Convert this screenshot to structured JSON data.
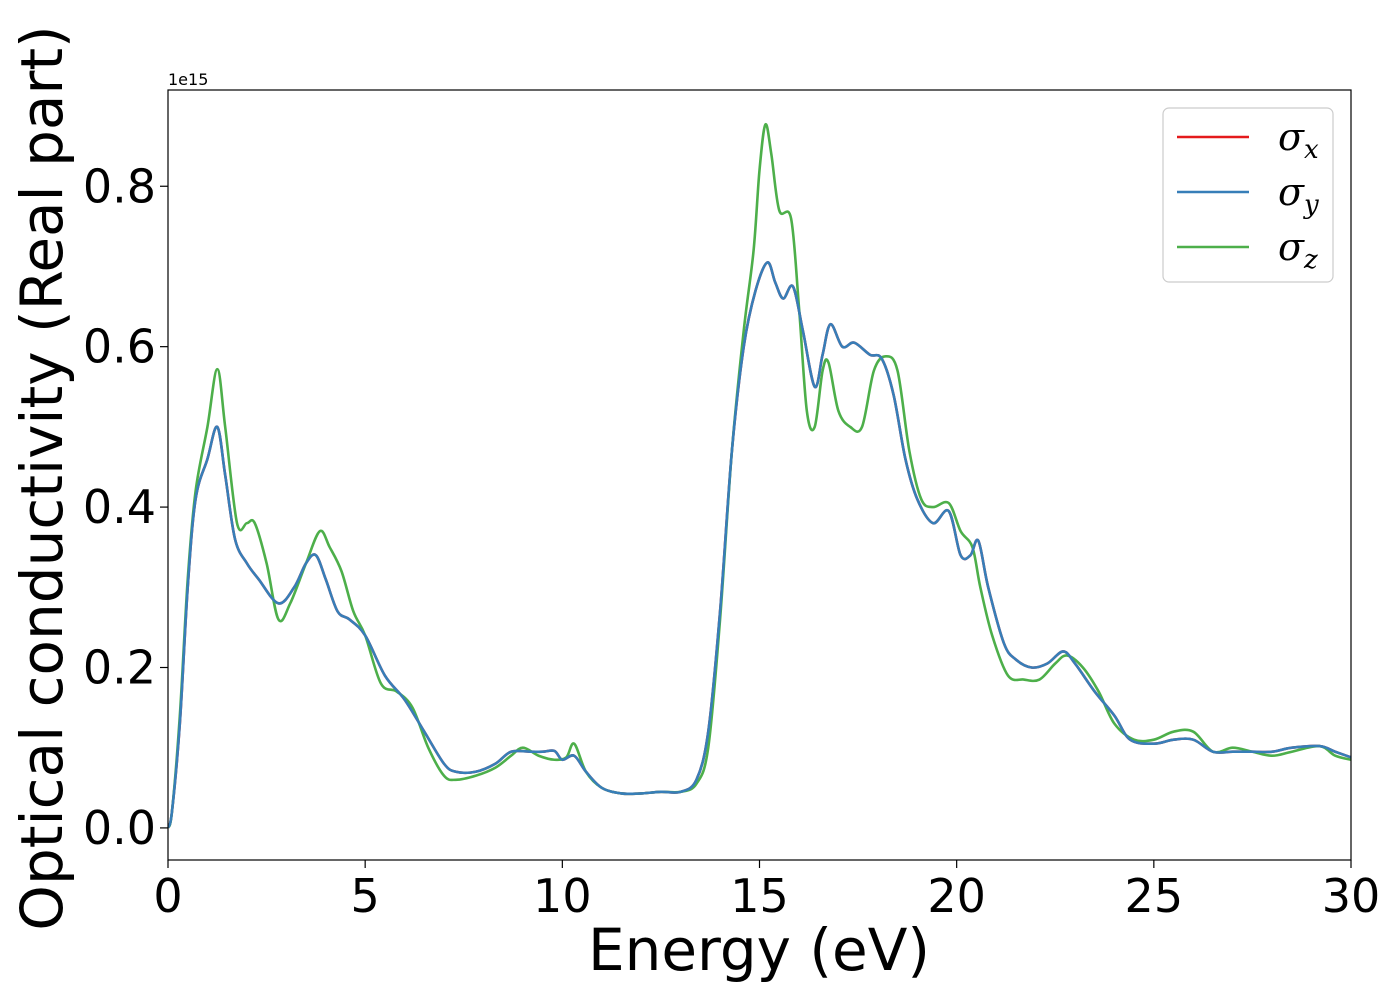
{
  "chart_data": {
    "type": "line",
    "title": "",
    "xlabel": "Energy (eV)",
    "ylabel": "Optical conductivity (Real part)",
    "y_offset_text": "1e15",
    "xlim": [
      0,
      30
    ],
    "ylim": [
      -0.04,
      0.92
    ],
    "xticks": [
      0,
      5,
      10,
      15,
      20,
      25,
      30
    ],
    "xtick_labels": [
      "0",
      "5",
      "10",
      "15",
      "20",
      "25",
      "30"
    ],
    "yticks": [
      0.0,
      0.2,
      0.4,
      0.6,
      0.8
    ],
    "ytick_labels": [
      "0.0",
      "0.2",
      "0.4",
      "0.6",
      "0.8"
    ],
    "grid": false,
    "legend_position": "top-right",
    "series": [
      {
        "name": "σx",
        "legend_base": "σ",
        "legend_sub": "x",
        "color": "#e41a1c",
        "points": [
          [
            0,
            0.0
          ],
          [
            0.1,
            0.02
          ],
          [
            0.3,
            0.13
          ],
          [
            0.5,
            0.3
          ],
          [
            0.7,
            0.41
          ],
          [
            1.0,
            0.46
          ],
          [
            1.25,
            0.5
          ],
          [
            1.45,
            0.44
          ],
          [
            1.7,
            0.36
          ],
          [
            2.0,
            0.33
          ],
          [
            2.3,
            0.31
          ],
          [
            2.8,
            0.28
          ],
          [
            3.2,
            0.3
          ],
          [
            3.5,
            0.33
          ],
          [
            3.75,
            0.34
          ],
          [
            4.0,
            0.31
          ],
          [
            4.3,
            0.27
          ],
          [
            4.6,
            0.26
          ],
          [
            5.0,
            0.24
          ],
          [
            5.5,
            0.19
          ],
          [
            6.0,
            0.16
          ],
          [
            6.5,
            0.12
          ],
          [
            7.0,
            0.08
          ],
          [
            7.3,
            0.07
          ],
          [
            7.8,
            0.07
          ],
          [
            8.3,
            0.08
          ],
          [
            8.7,
            0.095
          ],
          [
            9.2,
            0.095
          ],
          [
            9.5,
            0.095
          ],
          [
            9.8,
            0.096
          ],
          [
            10.0,
            0.085
          ],
          [
            10.3,
            0.09
          ],
          [
            10.6,
            0.07
          ],
          [
            11.0,
            0.05
          ],
          [
            11.5,
            0.043
          ],
          [
            12.0,
            0.043
          ],
          [
            12.5,
            0.045
          ],
          [
            13.0,
            0.045
          ],
          [
            13.4,
            0.06
          ],
          [
            13.7,
            0.12
          ],
          [
            14.0,
            0.27
          ],
          [
            14.3,
            0.47
          ],
          [
            14.6,
            0.6
          ],
          [
            14.9,
            0.67
          ],
          [
            15.2,
            0.705
          ],
          [
            15.4,
            0.68
          ],
          [
            15.6,
            0.66
          ],
          [
            15.85,
            0.675
          ],
          [
            16.1,
            0.62
          ],
          [
            16.4,
            0.55
          ],
          [
            16.6,
            0.59
          ],
          [
            16.8,
            0.628
          ],
          [
            17.1,
            0.6
          ],
          [
            17.4,
            0.605
          ],
          [
            17.8,
            0.59
          ],
          [
            18.1,
            0.585
          ],
          [
            18.4,
            0.54
          ],
          [
            18.7,
            0.46
          ],
          [
            19.0,
            0.41
          ],
          [
            19.4,
            0.38
          ],
          [
            19.8,
            0.395
          ],
          [
            20.1,
            0.34
          ],
          [
            20.35,
            0.34
          ],
          [
            20.55,
            0.358
          ],
          [
            20.8,
            0.3
          ],
          [
            21.2,
            0.23
          ],
          [
            21.5,
            0.21
          ],
          [
            21.9,
            0.2
          ],
          [
            22.3,
            0.205
          ],
          [
            22.7,
            0.22
          ],
          [
            23.0,
            0.205
          ],
          [
            23.5,
            0.17
          ],
          [
            24.0,
            0.14
          ],
          [
            24.4,
            0.11
          ],
          [
            25.0,
            0.105
          ],
          [
            25.5,
            0.11
          ],
          [
            26.0,
            0.11
          ],
          [
            26.5,
            0.095
          ],
          [
            27.0,
            0.095
          ],
          [
            27.5,
            0.095
          ],
          [
            28.0,
            0.095
          ],
          [
            28.5,
            0.1
          ],
          [
            29.2,
            0.102
          ],
          [
            29.6,
            0.095
          ],
          [
            30.0,
            0.088
          ]
        ]
      },
      {
        "name": "σy",
        "legend_base": "σ",
        "legend_sub": "y",
        "color": "#377eb8",
        "points": [
          [
            0,
            0.0
          ],
          [
            0.1,
            0.02
          ],
          [
            0.3,
            0.13
          ],
          [
            0.5,
            0.3
          ],
          [
            0.7,
            0.41
          ],
          [
            1.0,
            0.46
          ],
          [
            1.25,
            0.5
          ],
          [
            1.45,
            0.44
          ],
          [
            1.7,
            0.36
          ],
          [
            2.0,
            0.33
          ],
          [
            2.3,
            0.31
          ],
          [
            2.8,
            0.28
          ],
          [
            3.2,
            0.3
          ],
          [
            3.5,
            0.33
          ],
          [
            3.75,
            0.34
          ],
          [
            4.0,
            0.31
          ],
          [
            4.3,
            0.27
          ],
          [
            4.6,
            0.26
          ],
          [
            5.0,
            0.24
          ],
          [
            5.5,
            0.19
          ],
          [
            6.0,
            0.16
          ],
          [
            6.5,
            0.12
          ],
          [
            7.0,
            0.08
          ],
          [
            7.3,
            0.07
          ],
          [
            7.8,
            0.07
          ],
          [
            8.3,
            0.08
          ],
          [
            8.7,
            0.095
          ],
          [
            9.2,
            0.095
          ],
          [
            9.5,
            0.095
          ],
          [
            9.8,
            0.096
          ],
          [
            10.0,
            0.085
          ],
          [
            10.3,
            0.09
          ],
          [
            10.6,
            0.07
          ],
          [
            11.0,
            0.05
          ],
          [
            11.5,
            0.043
          ],
          [
            12.0,
            0.043
          ],
          [
            12.5,
            0.045
          ],
          [
            13.0,
            0.045
          ],
          [
            13.4,
            0.06
          ],
          [
            13.7,
            0.12
          ],
          [
            14.0,
            0.27
          ],
          [
            14.3,
            0.47
          ],
          [
            14.6,
            0.6
          ],
          [
            14.9,
            0.67
          ],
          [
            15.2,
            0.705
          ],
          [
            15.4,
            0.68
          ],
          [
            15.6,
            0.66
          ],
          [
            15.85,
            0.675
          ],
          [
            16.1,
            0.62
          ],
          [
            16.4,
            0.55
          ],
          [
            16.6,
            0.59
          ],
          [
            16.8,
            0.628
          ],
          [
            17.1,
            0.6
          ],
          [
            17.4,
            0.605
          ],
          [
            17.8,
            0.59
          ],
          [
            18.1,
            0.585
          ],
          [
            18.4,
            0.54
          ],
          [
            18.7,
            0.46
          ],
          [
            19.0,
            0.41
          ],
          [
            19.4,
            0.38
          ],
          [
            19.8,
            0.395
          ],
          [
            20.1,
            0.34
          ],
          [
            20.35,
            0.34
          ],
          [
            20.55,
            0.358
          ],
          [
            20.8,
            0.3
          ],
          [
            21.2,
            0.23
          ],
          [
            21.5,
            0.21
          ],
          [
            21.9,
            0.2
          ],
          [
            22.3,
            0.205
          ],
          [
            22.7,
            0.22
          ],
          [
            23.0,
            0.205
          ],
          [
            23.5,
            0.17
          ],
          [
            24.0,
            0.14
          ],
          [
            24.4,
            0.11
          ],
          [
            25.0,
            0.105
          ],
          [
            25.5,
            0.11
          ],
          [
            26.0,
            0.11
          ],
          [
            26.5,
            0.095
          ],
          [
            27.0,
            0.095
          ],
          [
            27.5,
            0.095
          ],
          [
            28.0,
            0.095
          ],
          [
            28.5,
            0.1
          ],
          [
            29.2,
            0.102
          ],
          [
            29.6,
            0.095
          ],
          [
            30.0,
            0.088
          ]
        ]
      },
      {
        "name": "σz",
        "legend_base": "σ",
        "legend_sub": "z",
        "color": "#4daf4a",
        "points": [
          [
            0,
            0.0
          ],
          [
            0.1,
            0.02
          ],
          [
            0.3,
            0.14
          ],
          [
            0.5,
            0.31
          ],
          [
            0.7,
            0.42
          ],
          [
            1.0,
            0.5
          ],
          [
            1.25,
            0.572
          ],
          [
            1.45,
            0.5
          ],
          [
            1.75,
            0.38
          ],
          [
            2.0,
            0.38
          ],
          [
            2.2,
            0.38
          ],
          [
            2.5,
            0.33
          ],
          [
            2.8,
            0.26
          ],
          [
            3.1,
            0.28
          ],
          [
            3.5,
            0.33
          ],
          [
            3.85,
            0.37
          ],
          [
            4.1,
            0.35
          ],
          [
            4.4,
            0.32
          ],
          [
            4.7,
            0.27
          ],
          [
            5.0,
            0.24
          ],
          [
            5.4,
            0.18
          ],
          [
            5.8,
            0.17
          ],
          [
            6.2,
            0.15
          ],
          [
            6.6,
            0.1
          ],
          [
            7.0,
            0.065
          ],
          [
            7.3,
            0.06
          ],
          [
            7.8,
            0.065
          ],
          [
            8.3,
            0.075
          ],
          [
            8.7,
            0.09
          ],
          [
            9.0,
            0.1
          ],
          [
            9.4,
            0.09
          ],
          [
            9.8,
            0.085
          ],
          [
            10.1,
            0.088
          ],
          [
            10.3,
            0.105
          ],
          [
            10.6,
            0.07
          ],
          [
            11.0,
            0.05
          ],
          [
            11.5,
            0.043
          ],
          [
            12.0,
            0.043
          ],
          [
            12.5,
            0.045
          ],
          [
            13.0,
            0.045
          ],
          [
            13.4,
            0.055
          ],
          [
            13.7,
            0.1
          ],
          [
            14.0,
            0.26
          ],
          [
            14.3,
            0.47
          ],
          [
            14.6,
            0.62
          ],
          [
            14.85,
            0.72
          ],
          [
            15.0,
            0.82
          ],
          [
            15.15,
            0.877
          ],
          [
            15.3,
            0.84
          ],
          [
            15.5,
            0.77
          ],
          [
            15.8,
            0.76
          ],
          [
            16.0,
            0.65
          ],
          [
            16.2,
            0.52
          ],
          [
            16.4,
            0.5
          ],
          [
            16.6,
            0.57
          ],
          [
            16.75,
            0.58
          ],
          [
            17.0,
            0.52
          ],
          [
            17.3,
            0.5
          ],
          [
            17.6,
            0.5
          ],
          [
            17.9,
            0.57
          ],
          [
            18.2,
            0.588
          ],
          [
            18.5,
            0.57
          ],
          [
            18.8,
            0.47
          ],
          [
            19.1,
            0.41
          ],
          [
            19.4,
            0.4
          ],
          [
            19.8,
            0.405
          ],
          [
            20.1,
            0.37
          ],
          [
            20.4,
            0.35
          ],
          [
            20.6,
            0.3
          ],
          [
            20.9,
            0.24
          ],
          [
            21.3,
            0.19
          ],
          [
            21.7,
            0.185
          ],
          [
            22.1,
            0.185
          ],
          [
            22.5,
            0.205
          ],
          [
            22.8,
            0.215
          ],
          [
            23.2,
            0.2
          ],
          [
            23.6,
            0.17
          ],
          [
            24.0,
            0.13
          ],
          [
            24.5,
            0.11
          ],
          [
            25.0,
            0.11
          ],
          [
            25.5,
            0.12
          ],
          [
            26.0,
            0.12
          ],
          [
            26.5,
            0.095
          ],
          [
            27.0,
            0.1
          ],
          [
            27.5,
            0.095
          ],
          [
            28.0,
            0.09
          ],
          [
            28.5,
            0.095
          ],
          [
            29.2,
            0.102
          ],
          [
            29.6,
            0.09
          ],
          [
            30.0,
            0.085
          ]
        ]
      }
    ]
  }
}
